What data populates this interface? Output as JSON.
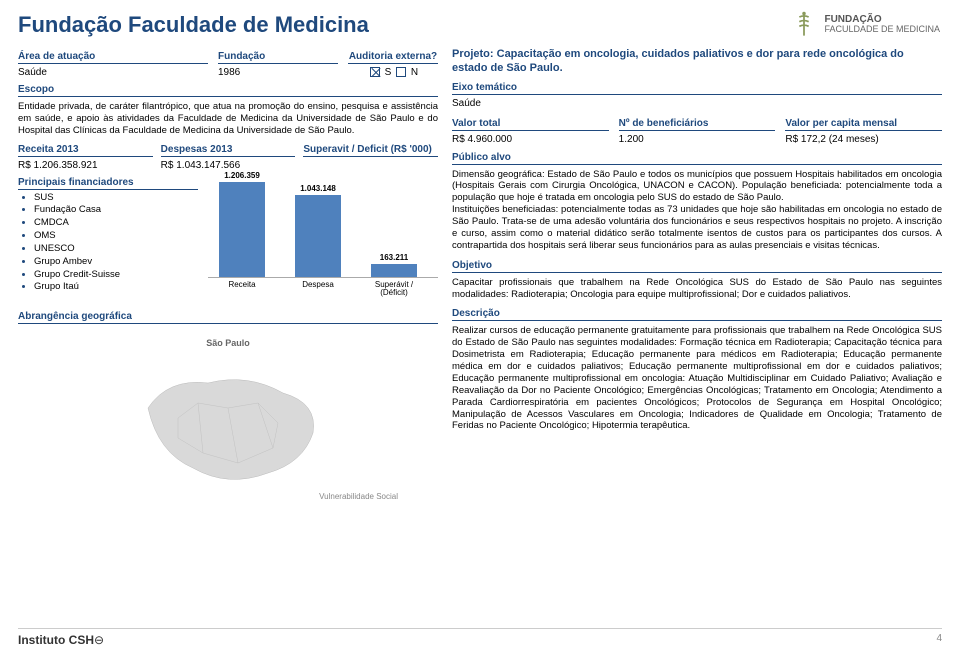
{
  "title": "Fundação Faculdade de Medicina",
  "logo": {
    "line1": "FUNDAÇÃO",
    "line2": "FACULDADE DE MEDICINA"
  },
  "meta": {
    "area_label": "Área de atuação",
    "area_value": "Saúde",
    "fundacao_label": "Fundação",
    "fundacao_value": "1986",
    "auditoria_label": "Auditoria externa?",
    "s_label": "S",
    "n_label": "N"
  },
  "escopo": {
    "label": "Escopo",
    "text": "Entidade privada, de caráter filantrópico, que atua na promoção do ensino, pesquisa e assistência em saúde, e apoio às atividades da Faculdade de Medicina da Universidade de São Paulo e do Hospital das Clínicas da Faculdade de Medicina da Universidade de São Paulo."
  },
  "finance": {
    "receita_label": "Receita 2013",
    "receita_value": "R$ 1.206.358.921",
    "despesas_label": "Despesas 2013",
    "despesas_value": "R$ 1.043.147.566",
    "superavit_label": "Superavit / Deficit (R$ '000)"
  },
  "chart": {
    "type": "bar",
    "bars": [
      {
        "label": "Receita",
        "value": "1.206.359",
        "h": 95
      },
      {
        "label": "Despesa",
        "value": "1.043.148",
        "h": 82
      },
      {
        "label": "Superávit / (Déficit)",
        "value": "163.211",
        "h": 13
      }
    ],
    "bar_color": "#4f81bd"
  },
  "financiadores": {
    "label": "Principais financiadores",
    "items": [
      "SUS",
      "Fundação Casa",
      "CMDCA",
      "OMS",
      "UNESCO",
      "Grupo Ambev",
      "Grupo Credit-Suisse",
      "Grupo Itaú"
    ]
  },
  "abrangencia": {
    "label": "Abrangência geográfica",
    "map_label": "São Paulo",
    "vuln_label": "Vulnerabilidade Social"
  },
  "right": {
    "project_label_prefix": "Projeto: ",
    "project_title": "Capacitação em oncologia, cuidados paliativos e dor para rede oncológica do estado de São Paulo.",
    "eixo_label": "Eixo temático",
    "eixo_value": "Saúde",
    "kv": {
      "valor_total_label": "Valor total",
      "valor_total_value": "R$ 4.960.000",
      "benef_label": "Nº de beneficiários",
      "benef_value": "1.200",
      "percapita_label": "Valor per capita mensal",
      "percapita_value": "R$ 172,2 (24 meses)"
    },
    "publico_label": "Público alvo",
    "publico_text": "Dimensão geográfica: Estado de São Paulo e todos os municípios que possuem Hospitais habilitados em oncologia (Hospitais Gerais com Cirurgia Oncológica, UNACON e CACON). População beneficiada: potencialmente toda a população que hoje é tratada em oncologia pelo SUS do estado de São Paulo.\nInstituições beneficiadas: potencialmente todas as 73 unidades que hoje são habilitadas em oncologia no estado de São Paulo. Trata-se de uma adesão voluntária dos funcionários e seus respectivos hospitais no projeto. A inscrição e curso, assim como o material didático serão totalmente isentos de custos para os participantes dos cursos. A contrapartida dos hospitais será liberar seus funcionários para as aulas presenciais e visitas técnicas.",
    "objetivo_label": "Objetivo",
    "objetivo_text": "Capacitar profissionais que trabalhem na Rede Oncológica SUS do Estado de São Paulo nas seguintes modalidades: Radioterapia; Oncologia para equipe multiprofissional; Dor e cuidados paliativos.",
    "descricao_label": "Descrição",
    "descricao_text": "Realizar cursos de educação permanente gratuitamente para profissionais que trabalhem na Rede Oncológica SUS do Estado de São Paulo nas seguintes modalidades: Formação técnica em Radioterapia; Capacitação técnica para Dosimetrista em Radioterapia; Educação permanente para médicos em Radioterapia; Educação permanente médica em dor e cuidados paliativos; Educação permanente multiprofissional em dor e cuidados paliativos; Educação permanente multiprofissional em oncologia: Atuação Multidisciplinar em Cuidado Paliativo; Avaliação e Reavaliação da Dor no Paciente Oncológico; Emergências Oncológicas; Tratamento em Oncologia; Atendimento a Parada Cardiorrespiratória em pacientes Oncológicos; Protocolos de Segurança em Hospital Oncológico; Manipulação de Acessos Vasculares em Oncologia; Indicadores de Qualidade em Oncologia; Tratamento de Feridas no Paciente Oncológico; Hipotermia terapêutica."
  },
  "footer": {
    "org": "Instituto CSH",
    "page": "4"
  }
}
